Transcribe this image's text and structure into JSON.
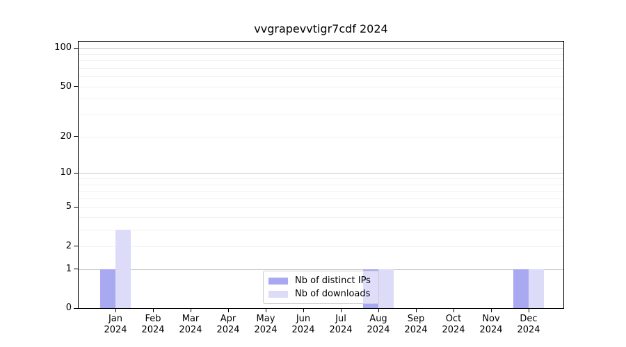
{
  "chart_data": {
    "type": "bar",
    "title": "vvgrapevvtigr7cdf 2024",
    "x_categories": [
      "Jan",
      "Feb",
      "Mar",
      "Apr",
      "May",
      "Jun",
      "Jul",
      "Aug",
      "Sep",
      "Oct",
      "Nov",
      "Dec"
    ],
    "x_category_year": "2024",
    "series": [
      {
        "name": "Nb of distinct IPs",
        "color": "#a9a9f2",
        "values": [
          1,
          0,
          0,
          0,
          0,
          0,
          0,
          1,
          0,
          0,
          0,
          1
        ]
      },
      {
        "name": "Nb of downloads",
        "color": "#dcdcf9",
        "values": [
          3,
          0,
          0,
          0,
          0,
          0,
          0,
          1,
          0,
          0,
          0,
          1
        ]
      }
    ],
    "y_axis": {
      "scale": "log10(1+y)",
      "tick_values": [
        0,
        1,
        2,
        5,
        10,
        20,
        50,
        100
      ],
      "major_gridlines": [
        1,
        10,
        100
      ],
      "minor_gridlines": [
        2,
        3,
        4,
        5,
        6,
        7,
        8,
        9,
        20,
        30,
        40,
        50,
        60,
        70,
        80,
        90
      ],
      "ylim": [
        0,
        112
      ]
    },
    "legend": {
      "position": "lower center"
    },
    "grid": true,
    "colors": {
      "spine": "#000000",
      "major_grid": "#c9c9c9",
      "minor_grid": "#f0f0f0",
      "text": "#000000",
      "legend_border": "#cccccc"
    }
  }
}
